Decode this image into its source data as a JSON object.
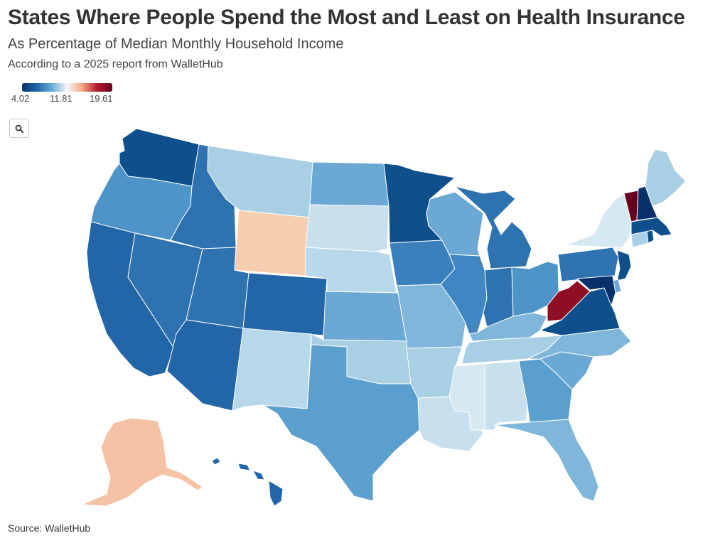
{
  "header": {
    "title": "States Where People Spend the Most and Least on Health Insurance",
    "subtitle": "As Percentage of Median Monthly Household Income",
    "note": "According to a 2025 report from WalletHub"
  },
  "legend": {
    "min_label": "4.02",
    "mid_label": "11.81",
    "max_label": "19.61",
    "colors": [
      "#08306b",
      "#2166ac",
      "#6baed6",
      "#f7f7f7",
      "#f4a582",
      "#b2182b",
      "#67001f"
    ]
  },
  "toolbar": {
    "search_icon": "search-icon"
  },
  "source": {
    "text": "Source: WalletHub"
  },
  "map_data": {
    "type": "choropleth",
    "states": [
      {
        "id": "WA",
        "fill": "#0f4f8c"
      },
      {
        "id": "OR",
        "fill": "#4f94c8"
      },
      {
        "id": "CA",
        "fill": "#2366a8"
      },
      {
        "id": "NV",
        "fill": "#2f72b0"
      },
      {
        "id": "ID",
        "fill": "#2f72b0"
      },
      {
        "id": "MT",
        "fill": "#a9cfe4"
      },
      {
        "id": "WY",
        "fill": "#f6cdae"
      },
      {
        "id": "UT",
        "fill": "#2f72b0"
      },
      {
        "id": "AZ",
        "fill": "#2366a8"
      },
      {
        "id": "CO",
        "fill": "#2366a8"
      },
      {
        "id": "NM",
        "fill": "#b7d7ea"
      },
      {
        "id": "ND",
        "fill": "#6ba8d4"
      },
      {
        "id": "SD",
        "fill": "#c8e0ee"
      },
      {
        "id": "NE",
        "fill": "#b7d7ea"
      },
      {
        "id": "KS",
        "fill": "#6ba8d4"
      },
      {
        "id": "OK",
        "fill": "#a9cfe4"
      },
      {
        "id": "TX",
        "fill": "#5b9fcf"
      },
      {
        "id": "MN",
        "fill": "#0f4f8c"
      },
      {
        "id": "IA",
        "fill": "#3a80bd"
      },
      {
        "id": "MO",
        "fill": "#7fb6da"
      },
      {
        "id": "AR",
        "fill": "#a9cfe4"
      },
      {
        "id": "LA",
        "fill": "#c8e0ee"
      },
      {
        "id": "WI",
        "fill": "#6ba8d4"
      },
      {
        "id": "IL",
        "fill": "#3f86c2"
      },
      {
        "id": "MI",
        "fill": "#2f72b0"
      },
      {
        "id": "IN",
        "fill": "#2f72b0"
      },
      {
        "id": "OH",
        "fill": "#4f94c8"
      },
      {
        "id": "KY",
        "fill": "#7fb6da"
      },
      {
        "id": "TN",
        "fill": "#a9cfe4"
      },
      {
        "id": "MS",
        "fill": "#d6e8f2"
      },
      {
        "id": "AL",
        "fill": "#c8e0ee"
      },
      {
        "id": "GA",
        "fill": "#5b9fcf"
      },
      {
        "id": "FL",
        "fill": "#7fb6da"
      },
      {
        "id": "SC",
        "fill": "#6ba8d4"
      },
      {
        "id": "NC",
        "fill": "#7fb6da"
      },
      {
        "id": "VA",
        "fill": "#0f4f8c"
      },
      {
        "id": "WV",
        "fill": "#8e0f24"
      },
      {
        "id": "PA",
        "fill": "#2f72b0"
      },
      {
        "id": "NY",
        "fill": "#d6e8f2"
      },
      {
        "id": "NJ",
        "fill": "#0f4f8c"
      },
      {
        "id": "DE",
        "fill": "#6ba8d4"
      },
      {
        "id": "MD",
        "fill": "#08306b"
      },
      {
        "id": "CT",
        "fill": "#a9cfe4"
      },
      {
        "id": "RI",
        "fill": "#0f4f8c"
      },
      {
        "id": "MA",
        "fill": "#0f4f8c"
      },
      {
        "id": "VT",
        "fill": "#67001f"
      },
      {
        "id": "NH",
        "fill": "#08306b"
      },
      {
        "id": "ME",
        "fill": "#a9cfe4"
      },
      {
        "id": "AK",
        "fill": "#f6c2a6"
      },
      {
        "id": "HI",
        "fill": "#2366a8"
      }
    ]
  }
}
